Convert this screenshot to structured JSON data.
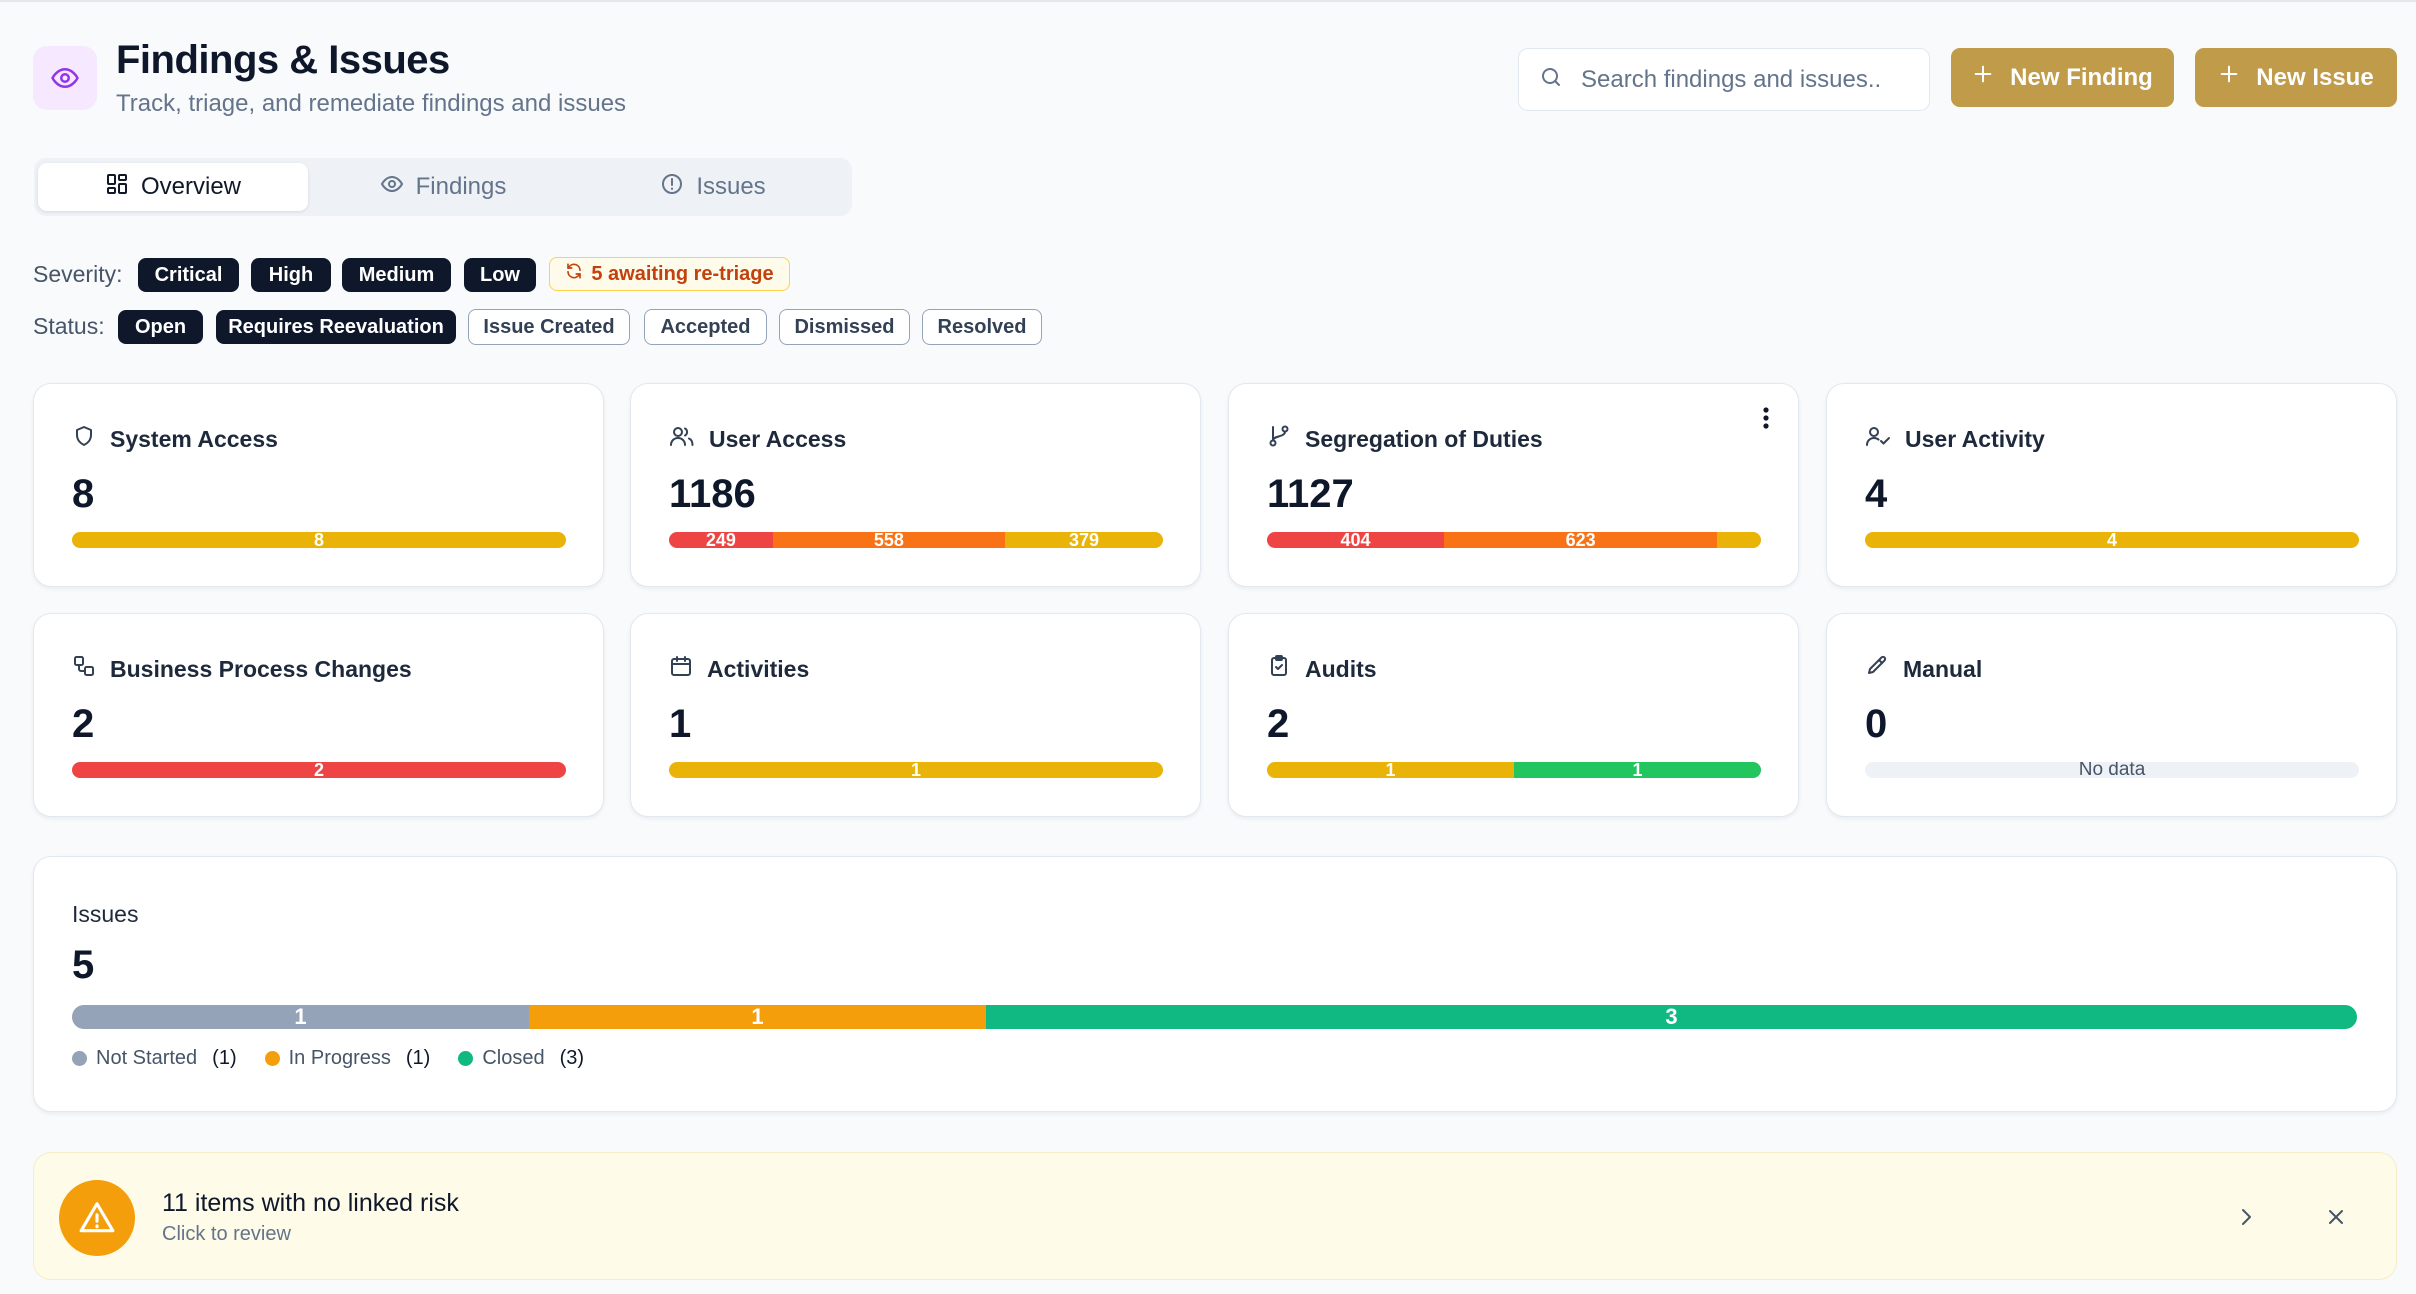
{
  "header": {
    "title": "Findings & Issues",
    "subtitle": "Track, triage, and remediate findings and issues",
    "icon": "eye-icon"
  },
  "search": {
    "placeholder": "Search findings and issues.."
  },
  "actions": {
    "new_finding": "New Finding",
    "new_issue": "New Issue"
  },
  "tabs": [
    {
      "label": "Overview",
      "icon": "grid-icon",
      "active": true
    },
    {
      "label": "Findings",
      "icon": "eye-icon",
      "active": false
    },
    {
      "label": "Issues",
      "icon": "alert-circle-icon",
      "active": false
    }
  ],
  "filters": {
    "severity_label": "Severity:",
    "severity": [
      "Critical",
      "High",
      "Medium",
      "Low"
    ],
    "retriage": "5 awaiting re-triage",
    "status_label": "Status:",
    "status_selected": [
      "Open",
      "Requires Reevaluation"
    ],
    "status_unselected": [
      "Issue Created",
      "Accepted",
      "Dismissed",
      "Resolved"
    ]
  },
  "colors": {
    "critical": "#ef4444",
    "high": "#f97316",
    "medium": "#eab308",
    "low": "#22c55e",
    "not_started": "#94a3b8",
    "in_progress": "#f59e0b",
    "closed": "#10b981",
    "accent": "#bf9b4a"
  },
  "cards": [
    {
      "title": "System Access",
      "icon": "shield-icon",
      "total": "8",
      "segments": [
        {
          "value": 8,
          "label": "8",
          "color": "#eab308"
        }
      ]
    },
    {
      "title": "User Access",
      "icon": "users-icon",
      "total": "1186",
      "segments": [
        {
          "value": 249,
          "label": "249",
          "color": "#ef4444"
        },
        {
          "value": 558,
          "label": "558",
          "color": "#f97316"
        },
        {
          "value": 379,
          "label": "379",
          "color": "#eab308"
        }
      ]
    },
    {
      "title": "Segregation of Duties",
      "icon": "git-branch-icon",
      "total": "1127",
      "segments": [
        {
          "value": 404,
          "label": "404",
          "color": "#ef4444"
        },
        {
          "value": 623,
          "label": "623",
          "color": "#f97316"
        },
        {
          "value": 100,
          "label": "",
          "color": "#eab308"
        }
      ]
    },
    {
      "title": "User Activity",
      "icon": "user-check-icon",
      "total": "4",
      "segments": [
        {
          "value": 4,
          "label": "4",
          "color": "#eab308"
        }
      ]
    },
    {
      "title": "Business Process Changes",
      "icon": "workflow-icon",
      "total": "2",
      "segments": [
        {
          "value": 2,
          "label": "2",
          "color": "#ef4444"
        }
      ]
    },
    {
      "title": "Activities",
      "icon": "calendar-icon",
      "total": "1",
      "segments": [
        {
          "value": 1,
          "label": "1",
          "color": "#eab308"
        }
      ]
    },
    {
      "title": "Audits",
      "icon": "clipboard-check-icon",
      "total": "2",
      "segments": [
        {
          "value": 1,
          "label": "1",
          "color": "#eab308"
        },
        {
          "value": 1,
          "label": "1",
          "color": "#22c55e"
        }
      ]
    },
    {
      "title": "Manual",
      "icon": "pencil-icon",
      "total": "0",
      "segments": [],
      "empty_text": "No data"
    }
  ],
  "issues": {
    "title": "Issues",
    "total": "5",
    "segments": [
      {
        "value": 1,
        "label": "1",
        "color": "#94a3b8"
      },
      {
        "value": 1,
        "label": "1",
        "color": "#f59e0b"
      },
      {
        "value": 3,
        "label": "3",
        "color": "#10b981"
      }
    ],
    "legend": [
      {
        "label": "Not Started",
        "count": "(1)",
        "color": "#94a3b8"
      },
      {
        "label": "In Progress",
        "count": "(1)",
        "color": "#f59e0b"
      },
      {
        "label": "Closed",
        "count": "(3)",
        "color": "#10b981"
      }
    ]
  },
  "banner": {
    "title": "11 items with no linked risk",
    "subtitle": "Click to review",
    "icon": "alert-triangle-icon"
  }
}
